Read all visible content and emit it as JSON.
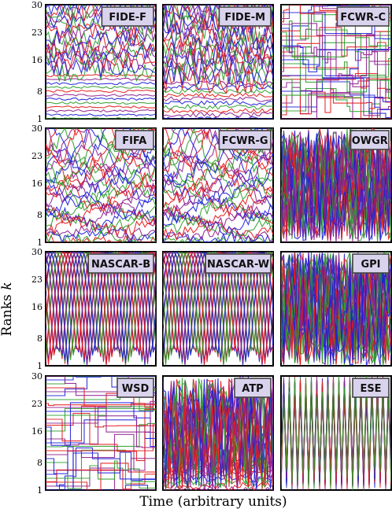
{
  "chart_data": {
    "type": "line",
    "xlabel": "Time (arbitrary units)",
    "ylabel": "Ranks k",
    "ylabel_main": "Ranks",
    "ylabel_var": "k",
    "ylim": [
      1,
      30
    ],
    "yticks": [
      1,
      8,
      16,
      23,
      30
    ],
    "grid": false,
    "series_colors": [
      "#e31a1c",
      "#2ca02c",
      "#1f1fd9",
      "#8e1f8e"
    ],
    "panels": [
      {
        "name": "FIDE-F",
        "pattern": "stable"
      },
      {
        "name": "FIDE-M",
        "pattern": "stable-top"
      },
      {
        "name": "FCWR-C",
        "pattern": "steps"
      },
      {
        "name": "FIFA",
        "pattern": "wavy"
      },
      {
        "name": "FCWR-G",
        "pattern": "wavy"
      },
      {
        "name": "OWGR",
        "pattern": "dense"
      },
      {
        "name": "NASCAR-B",
        "pattern": "racing"
      },
      {
        "name": "NASCAR-W",
        "pattern": "racing"
      },
      {
        "name": "GPI",
        "pattern": "dense"
      },
      {
        "name": "WSD",
        "pattern": "steps-sparse"
      },
      {
        "name": "ATP",
        "pattern": "dense-top"
      },
      {
        "name": "ESE",
        "pattern": "zigzag"
      }
    ]
  }
}
